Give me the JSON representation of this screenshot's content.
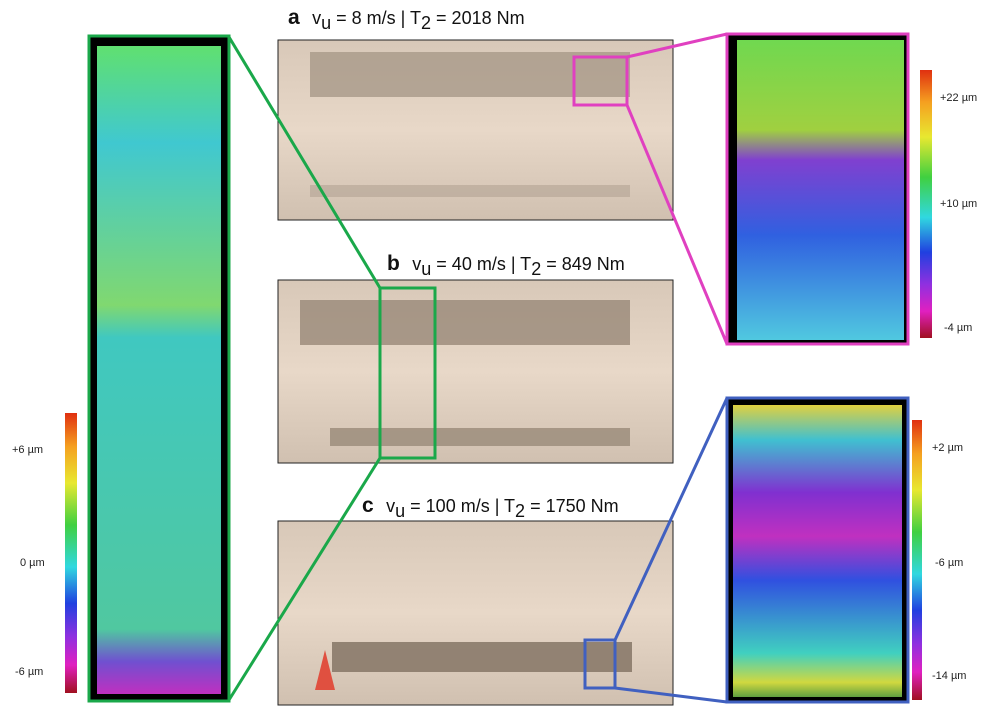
{
  "panels": [
    {
      "label": "a",
      "title": [
        "v",
        "u",
        " = 8 m/s | T",
        "2",
        " = 2018 Nm"
      ]
    },
    {
      "label": "b",
      "title": [
        "v",
        "u",
        " = 40 m/s | T",
        "2",
        " = 849 Nm"
      ]
    },
    {
      "label": "c",
      "title": [
        "v",
        "u",
        " = 100 m/s | T",
        "2",
        " = 1750 Nm"
      ]
    }
  ],
  "colorbars": {
    "left": [
      "+6 µm",
      "0 µm",
      "-6 µm"
    ],
    "top_right": [
      "+22 µm",
      "+10 µm",
      "-4 µm"
    ],
    "bottom_right": [
      "+2 µm",
      "-6 µm",
      "-14 µm"
    ]
  }
}
